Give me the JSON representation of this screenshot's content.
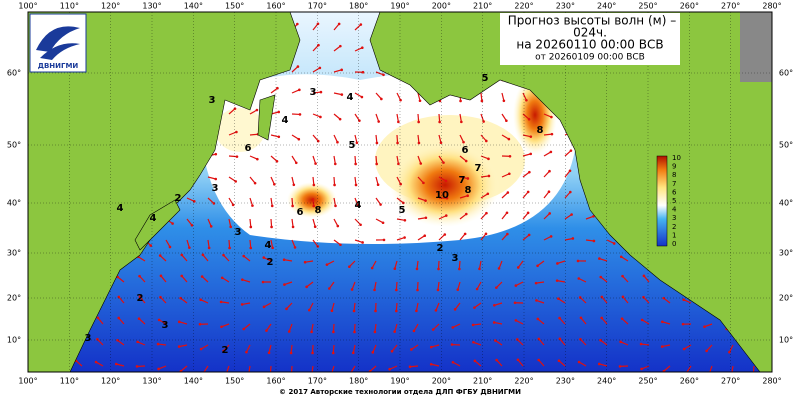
{
  "header": {
    "title": "Прогноз высоты волн (м) –",
    "title_line2": "024ч.",
    "forecast_time": "на 20260110 00:00 ВСВ",
    "issued_time": "от 20260109 00:00 ВСВ"
  },
  "logo": {
    "text": "ДВНИГМИ"
  },
  "map": {
    "longitude_labels": [
      "100°",
      "110°",
      "120°",
      "130°",
      "140°",
      "150°",
      "160°",
      "170°",
      "180°",
      "190°",
      "200°",
      "210°",
      "220°",
      "230°",
      "240°",
      "250°",
      "260°",
      "270°",
      "280°"
    ],
    "latitude_labels": [
      "60°",
      "50°",
      "40°",
      "30°",
      "20°",
      "10°"
    ],
    "contour_labels": [
      "3",
      "3",
      "4",
      "5",
      "4",
      "5",
      "6",
      "6",
      "7",
      "8",
      "10",
      "7",
      "8",
      "6",
      "5",
      "4",
      "3",
      "2",
      "4",
      "2",
      "3",
      "4",
      "4",
      "3",
      "2",
      "2",
      "3",
      "8",
      "2",
      "3"
    ]
  },
  "legend": {
    "labels": [
      "10",
      "9",
      "8",
      "7",
      "6",
      "5",
      "4",
      "3",
      "2",
      "1",
      "0"
    ]
  },
  "footer": {
    "copyright": "© 2017 Авторские технологии отдела ДЛП ФГБУ ДВНИГМИ"
  }
}
